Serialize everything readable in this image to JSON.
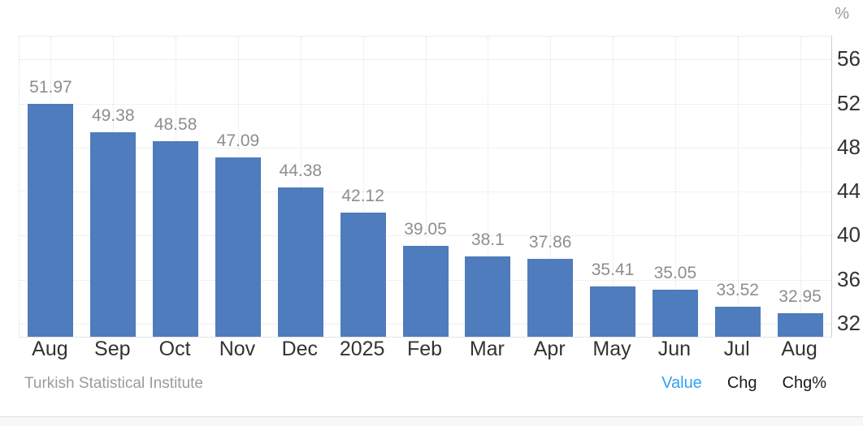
{
  "unit_label": "%",
  "source": "Turkish Statistical Institute",
  "footer": {
    "links": [
      {
        "label": "Value",
        "active": true
      },
      {
        "label": "Chg",
        "active": false
      },
      {
        "label": "Chg%",
        "active": false
      }
    ]
  },
  "colors": {
    "bar": "#4e7cbd",
    "value_label": "#8e8e8e",
    "axis_label": "#333333",
    "grid": "#e2e2e2",
    "axis_line": "#cfcfcf",
    "source_text": "#9b9b9b",
    "link_active": "#31a2f3",
    "link": "#1b1b1b",
    "footer_bg": "#f7f7f7"
  },
  "chart_data": {
    "type": "bar",
    "categories": [
      "Aug",
      "Sep",
      "Oct",
      "Nov",
      "Dec",
      "2025",
      "Feb",
      "Mar",
      "Apr",
      "May",
      "Jun",
      "Jul",
      "Aug"
    ],
    "values": [
      51.97,
      49.38,
      48.58,
      47.09,
      44.38,
      42.12,
      39.05,
      38.1,
      37.86,
      35.41,
      35.05,
      33.52,
      32.95
    ],
    "value_labels": [
      "51.97",
      "49.38",
      "48.58",
      "47.09",
      "44.38",
      "42.12",
      "39.05",
      "38.1",
      "37.86",
      "35.41",
      "35.05",
      "33.52",
      "32.95"
    ],
    "title": "",
    "xlabel": "",
    "ylabel": "%",
    "yticks": [
      56,
      52,
      48,
      44,
      40,
      36,
      32
    ],
    "ylim": [
      30.8,
      58.1
    ],
    "grid": true,
    "gridline_style": "dotted",
    "legend_position": "none",
    "y_axis_side": "right",
    "data_labels": true,
    "source": "Turkish Statistical Institute"
  }
}
